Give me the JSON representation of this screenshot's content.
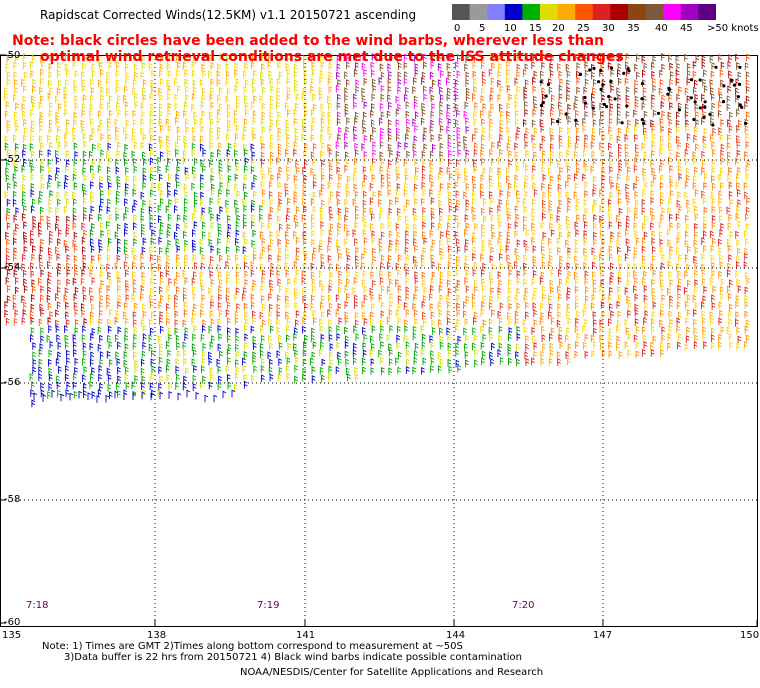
{
  "header": {
    "title": "Rapidscat Corrected Winds(12.5KM) v1.1 20150721 ascending",
    "note_line1": "Note: black circles have been added to the wind barbs, wherever less than",
    "note_line2": "optimal wind retrieval conditions are met due to the ISS attitude changes"
  },
  "colorbar": {
    "labels": [
      "0",
      "5",
      "10",
      "15",
      "20",
      "25",
      "30",
      "35",
      "40",
      "45",
      ">50 knots"
    ],
    "colors": [
      "#555555",
      "#9a9a9a",
      "#8080ff",
      "#0000cc",
      "#00b000",
      "#dddd00",
      "#ffaa00",
      "#ff5500",
      "#dd2020",
      "#aa0000",
      "#8b4513",
      "#7a5a3a",
      "#ff00ff",
      "#a000c0",
      "#5a0080"
    ]
  },
  "map": {
    "lat_labels": [
      "-50",
      "-52",
      "-54",
      "-56",
      "-58",
      "-60"
    ],
    "lon_labels": [
      "135",
      "138",
      "141",
      "144",
      "147",
      "150"
    ],
    "time_labels": [
      "7:18",
      "7:19",
      "7:20"
    ]
  },
  "footer": {
    "line1": "Note: 1) Times are GMT 2)Times along bottom correspond to measurement at ~50S",
    "line2": "3)Data buffer is 22 hrs from 20150721 4) Black wind barbs indicate possible contamination",
    "credit": "NOAA/NESDIS/Center for Satellite Applications and Research"
  }
}
